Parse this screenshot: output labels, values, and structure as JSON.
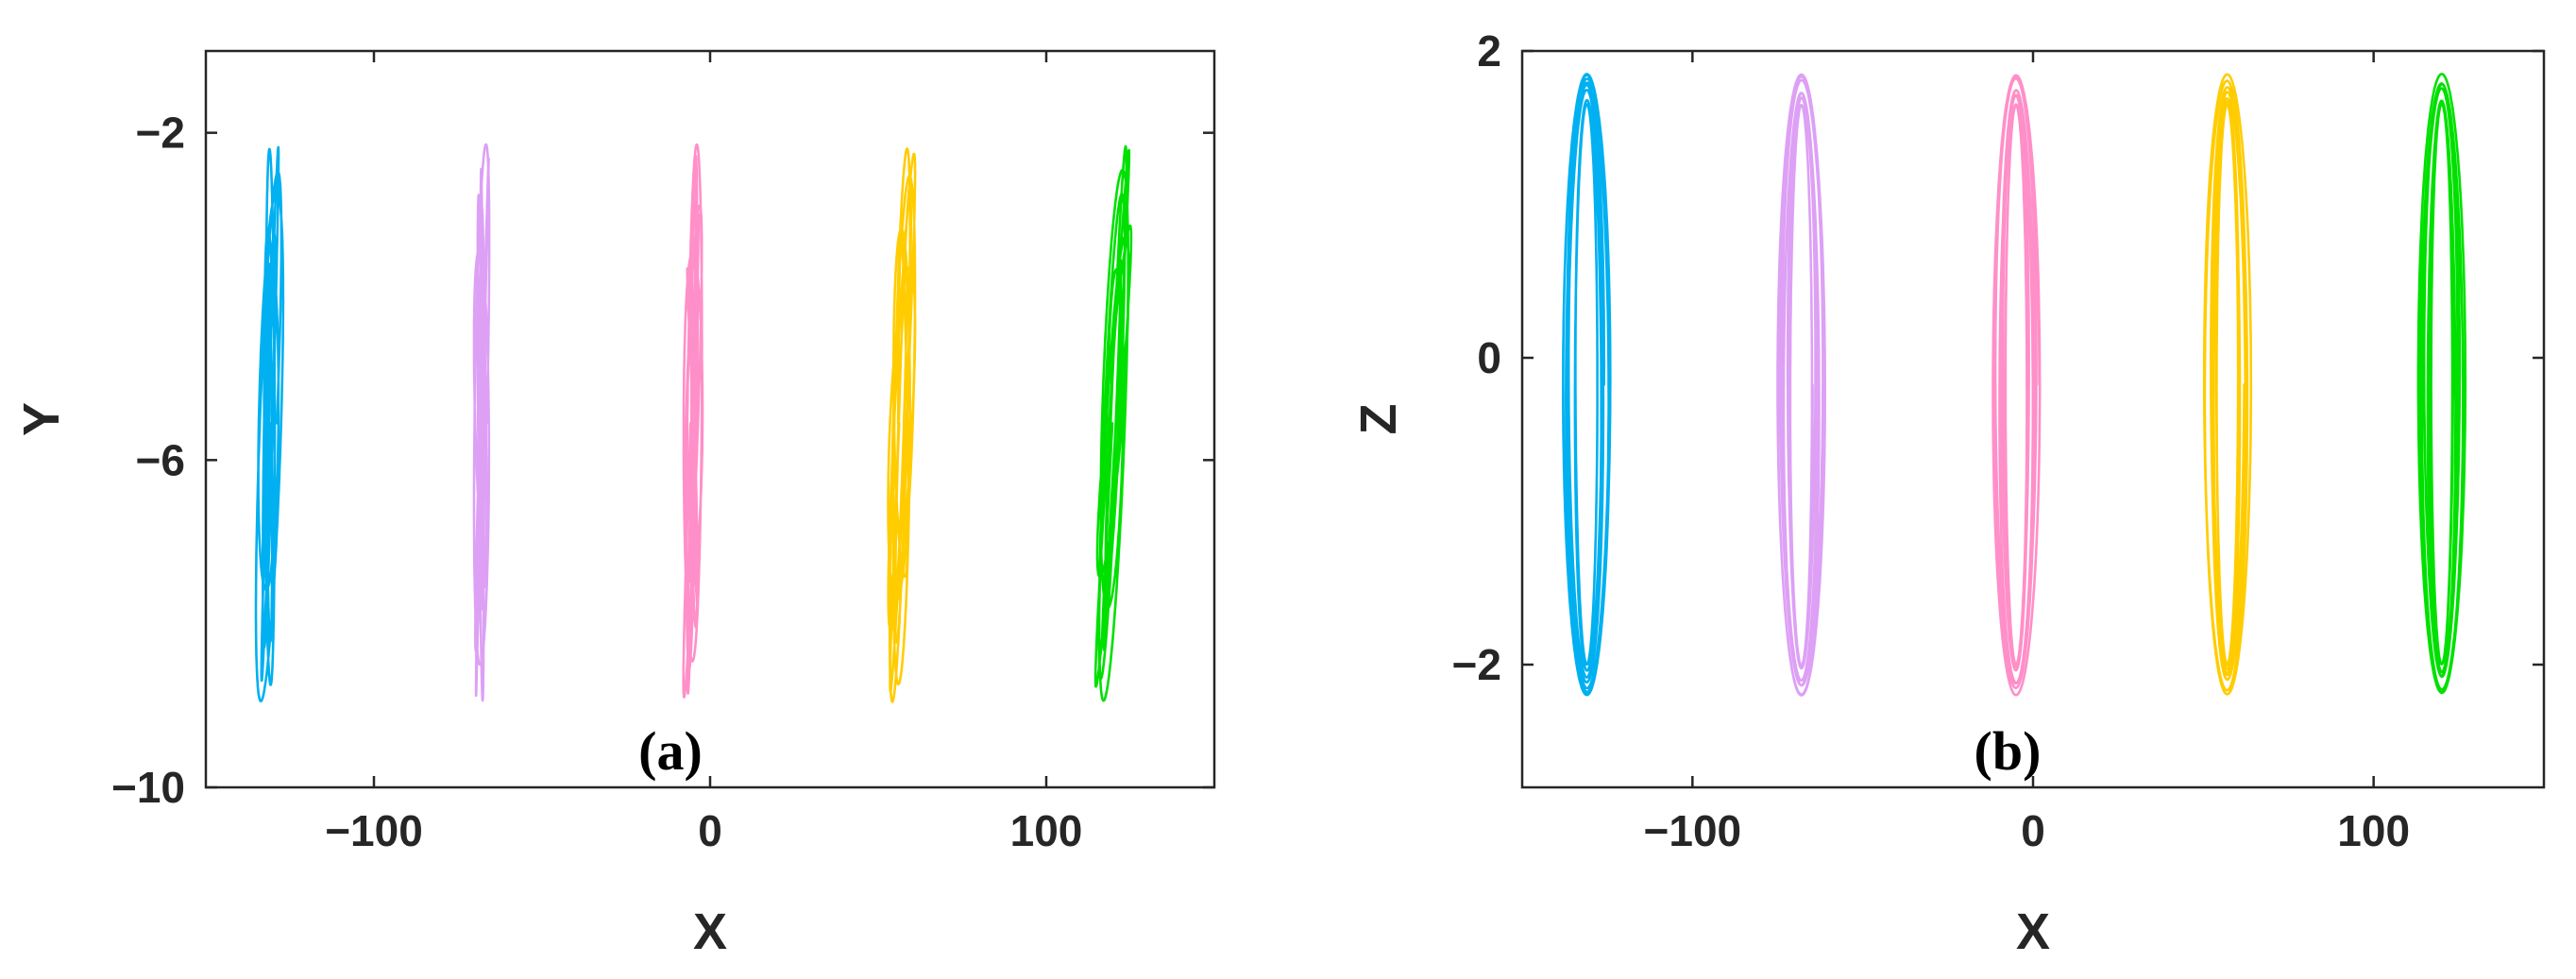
{
  "chart_data": [
    {
      "type": "line",
      "panel_label": "(a)",
      "xlabel": "X",
      "ylabel": "Y",
      "xlim": [
        -150,
        150
      ],
      "ylim": [
        -10,
        -1
      ],
      "xticks": [
        -100,
        0,
        100
      ],
      "yticks": [
        -10,
        -6,
        -2
      ],
      "xtick_labels": [
        "−100",
        "0",
        "100"
      ],
      "ytick_labels": [
        "−10",
        "−6",
        "−2"
      ],
      "grid": false,
      "series": [
        {
          "color": "#00B0F0",
          "x_center": -131,
          "x_width": 7,
          "y_range": [
            -9.1,
            -2.0
          ],
          "y_peaks": [
            -2.0,
            -2.3,
            -3.6,
            -8.6,
            -9.1
          ],
          "loops": 8
        },
        {
          "color": "#DDA0F5",
          "x_center": -68,
          "x_width": 7,
          "y_range": [
            -9.1,
            -2.0
          ],
          "y_peaks": [
            -2.0,
            -2.3,
            -3.6,
            -8.6,
            -9.1
          ],
          "loops": 8
        },
        {
          "color": "#FF8FC8",
          "x_center": -5,
          "x_width": 7,
          "y_range": [
            -9.1,
            -2.0
          ],
          "y_peaks": [
            -2.0,
            -2.3,
            -3.6,
            -8.6,
            -9.1
          ],
          "loops": 8
        },
        {
          "color": "#FFCC00",
          "x_center": 57,
          "x_width": 7,
          "y_range": [
            -9.1,
            -2.0
          ],
          "y_peaks": [
            -2.0,
            -2.3,
            -3.6,
            -8.6,
            -9.1
          ],
          "loops": 8
        },
        {
          "color": "#00E000",
          "x_center": 120,
          "x_width": 7,
          "y_range": [
            -9.1,
            -2.0
          ],
          "y_peaks": [
            -2.0,
            -2.3,
            -3.6,
            -8.6,
            -9.1
          ],
          "loops": 8
        }
      ]
    },
    {
      "type": "line",
      "panel_label": "(b)",
      "xlabel": "X",
      "ylabel": "Z",
      "xlim": [
        -150,
        150
      ],
      "ylim": [
        -2.8,
        2.0
      ],
      "xticks": [
        -100,
        0,
        100
      ],
      "yticks": [
        -2,
        0,
        2
      ],
      "xtick_labels": [
        "−100",
        "0",
        "100"
      ],
      "ytick_labels": [
        "−2",
        "0",
        "2"
      ],
      "grid": false,
      "series": [
        {
          "color": "#00B0F0",
          "x_center": -131,
          "x_width": 14,
          "z_range": [
            -2.2,
            1.85
          ],
          "loops": 8
        },
        {
          "color": "#DDA0F5",
          "x_center": -68,
          "x_width": 14,
          "z_range": [
            -2.2,
            1.85
          ],
          "loops": 8
        },
        {
          "color": "#FF8FC8",
          "x_center": -5,
          "x_width": 14,
          "z_range": [
            -2.2,
            1.85
          ],
          "loops": 8
        },
        {
          "color": "#FFCC00",
          "x_center": 57,
          "x_width": 14,
          "z_range": [
            -2.2,
            1.85
          ],
          "loops": 8
        },
        {
          "color": "#00E000",
          "x_center": 120,
          "x_width": 14,
          "z_range": [
            -2.2,
            1.85
          ],
          "loops": 8
        }
      ]
    }
  ]
}
